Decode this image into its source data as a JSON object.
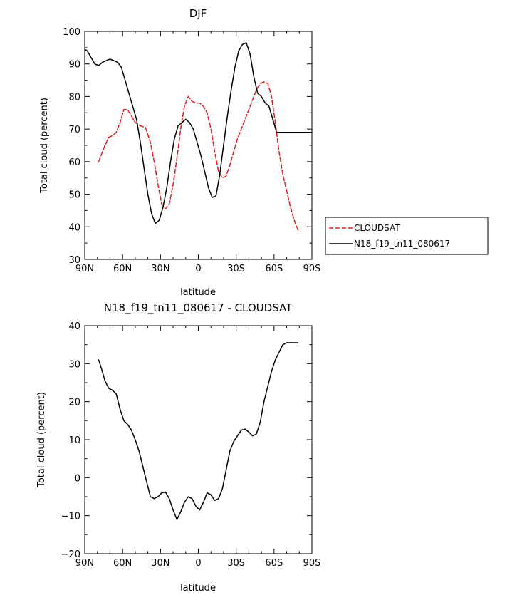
{
  "chart_data": [
    {
      "type": "line",
      "title": "DJF",
      "xlabel": "latitude",
      "ylabel": "Total cloud (percent)",
      "xlim": [
        90,
        -90
      ],
      "ylim": [
        30,
        100
      ],
      "xticks": [
        90,
        60,
        30,
        0,
        -30,
        -60,
        -90
      ],
      "xtick_labels": [
        "90N",
        "60N",
        "30N",
        "0",
        "30S",
        "60S",
        "90S"
      ],
      "yticks": [
        30,
        40,
        50,
        60,
        70,
        80,
        90,
        100
      ],
      "ytick_labels": [
        "30",
        "40",
        "50",
        "60",
        "70",
        "80",
        "90",
        "100"
      ],
      "legend_position": "outside-right",
      "series": [
        {
          "name": "CLOUDSAT",
          "color": "#e41a1c",
          "style": "dashed",
          "x": [
            79,
            77,
            74,
            71,
            68,
            65,
            62,
            59,
            56,
            53,
            50,
            46,
            42,
            38,
            35,
            32,
            29,
            26,
            23,
            20,
            17,
            14,
            11,
            8,
            5,
            2,
            -1,
            -4,
            -7,
            -10,
            -13,
            -16,
            -19,
            -22,
            -25,
            -28,
            -31,
            -34,
            -37,
            -40,
            -43,
            -46,
            -49,
            -52,
            -55,
            -58,
            -61,
            -64,
            -67,
            -70,
            -73,
            -76,
            -79
          ],
          "y": [
            60,
            62,
            65,
            67.5,
            68,
            69,
            72,
            76,
            76,
            74,
            72,
            71,
            70.5,
            66,
            60,
            53,
            47,
            45.5,
            47,
            53,
            61,
            70,
            77,
            80,
            78.5,
            78,
            78,
            77,
            75,
            70,
            63,
            57,
            55,
            55.5,
            59,
            63,
            67,
            70,
            73,
            76,
            79,
            82,
            84,
            84.5,
            84,
            80,
            72,
            63,
            56,
            51,
            46,
            42,
            39
          ]
        },
        {
          "name": "N18_f19_tn11_080617",
          "color": "#000000",
          "style": "solid",
          "x": [
            90,
            88,
            85,
            82,
            79,
            76,
            73,
            70,
            67,
            64,
            61,
            58,
            55,
            52,
            49,
            46,
            43,
            40,
            37,
            34,
            31,
            28,
            25,
            22,
            19,
            16,
            13,
            10,
            7,
            4,
            1,
            -2,
            -5,
            -8,
            -11,
            -14,
            -17,
            -20,
            -23,
            -26,
            -29,
            -32,
            -35,
            -38,
            -41,
            -44,
            -47,
            -50,
            -53,
            -56,
            -59,
            -62,
            -65,
            -68,
            -71,
            -74,
            -77,
            -80,
            -83,
            -86,
            -88,
            -90
          ],
          "y": [
            94.5,
            94,
            92,
            90,
            89.5,
            90.5,
            91,
            91.5,
            91,
            90.5,
            89,
            85,
            81,
            77,
            73,
            66,
            58,
            50,
            44,
            41,
            42,
            46,
            52,
            60,
            67,
            71,
            72,
            73,
            72,
            70,
            66,
            62,
            57,
            52,
            49,
            49.5,
            56,
            65,
            74,
            82,
            89,
            94,
            96,
            96.5,
            93,
            86,
            81,
            80,
            78,
            77,
            73,
            69,
            69,
            69,
            69,
            69,
            69,
            69,
            69,
            69,
            69,
            69
          ]
        }
      ]
    },
    {
      "type": "line",
      "title": "N18_f19_tn11_080617 - CLOUDSAT",
      "xlabel": "latitude",
      "ylabel": "Total cloud (percent)",
      "xlim": [
        90,
        -90
      ],
      "ylim": [
        -20,
        40
      ],
      "xticks": [
        90,
        60,
        30,
        0,
        -30,
        -60,
        -90
      ],
      "xtick_labels": [
        "90N",
        "60N",
        "30N",
        "0",
        "30S",
        "60S",
        "90S"
      ],
      "yticks": [
        -20,
        -10,
        0,
        10,
        20,
        30,
        40
      ],
      "ytick_labels": [
        "−20",
        "−10",
        "0",
        "10",
        "20",
        "30",
        "40"
      ],
      "series": [
        {
          "name": "",
          "color": "#000000",
          "style": "solid",
          "x": [
            79,
            77,
            74,
            71,
            68,
            65,
            62,
            59,
            56,
            53,
            50,
            47,
            44,
            41,
            38,
            35,
            32,
            29,
            26,
            23,
            20,
            17,
            14,
            11,
            8,
            5,
            2,
            -1,
            -4,
            -7,
            -10,
            -13,
            -16,
            -19,
            -22,
            -25,
            -28,
            -31,
            -34,
            -37,
            -40,
            -43,
            -46,
            -49,
            -52,
            -55,
            -58,
            -61,
            -64,
            -67,
            -70,
            -73,
            -76,
            -79
          ],
          "y": [
            31,
            29,
            25.5,
            23.5,
            23,
            22,
            18,
            15,
            14,
            12.5,
            10,
            7,
            3,
            -1,
            -5,
            -5.5,
            -5,
            -4,
            -3.8,
            -5.5,
            -8.5,
            -11,
            -9,
            -6.5,
            -5,
            -5.5,
            -7.5,
            -8.5,
            -6.5,
            -4,
            -4.5,
            -6,
            -5.5,
            -3,
            2,
            7,
            9.5,
            11,
            12.5,
            12.8,
            12,
            11,
            11.5,
            14.5,
            20,
            24,
            28,
            31,
            33,
            35,
            35.5,
            35.5,
            35.5,
            35.5
          ]
        }
      ]
    }
  ]
}
